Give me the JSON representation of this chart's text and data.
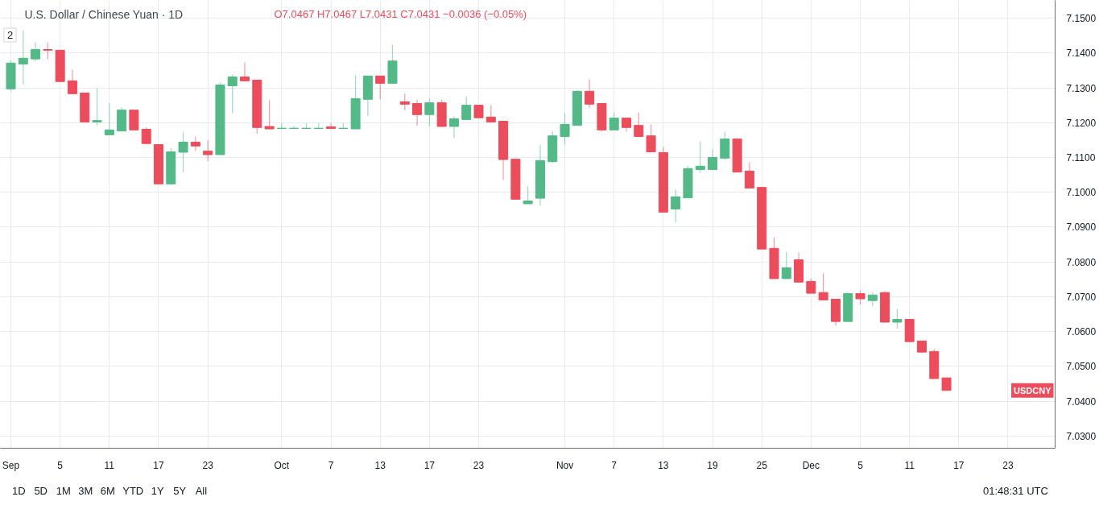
{
  "chart_data": {
    "type": "candlestick",
    "title": "U.S. Dollar / Chinese Yuan · 1D",
    "subtitle": "O7.0467 H7.0467 L7.0431 C7.0431 −0.0036 (−0.05%)",
    "categories": [
      "Sep",
      null,
      null,
      null,
      "5",
      null,
      null,
      null,
      "11",
      null,
      null,
      null,
      "17",
      null,
      null,
      null,
      "23",
      null,
      null,
      null,
      null,
      null,
      "Oct",
      null,
      null,
      null,
      "7",
      null,
      null,
      null,
      "13",
      null,
      null,
      null,
      "17",
      null,
      null,
      null,
      "23",
      null,
      null,
      null,
      null,
      null,
      null,
      "Nov",
      null,
      null,
      null,
      "7",
      null,
      null,
      null,
      "13",
      null,
      null,
      null,
      "19",
      null,
      null,
      null,
      "25",
      null,
      null,
      null,
      "Dec",
      null,
      null,
      null,
      "5",
      null,
      null,
      null,
      "11",
      null,
      null,
      null,
      "17",
      null,
      null,
      null,
      "23"
    ],
    "ohlc": [
      [
        7.1297,
        7.1378,
        7.129,
        7.1371
      ],
      [
        7.1368,
        7.1465,
        7.131,
        7.1385
      ],
      [
        7.1383,
        7.1431,
        7.1375,
        7.141
      ],
      [
        7.141,
        7.143,
        7.1383,
        7.1408
      ],
      [
        7.1408,
        7.1408,
        7.1318,
        7.1318
      ],
      [
        7.132,
        7.1352,
        7.1283,
        7.1283
      ],
      [
        7.1285,
        7.1285,
        7.1202,
        7.1202
      ],
      [
        7.1202,
        7.1299,
        7.1192,
        7.1206
      ],
      [
        7.1165,
        7.1256,
        7.1165,
        7.1179
      ],
      [
        7.1176,
        7.1244,
        7.1176,
        7.1236
      ],
      [
        7.1236,
        7.1236,
        7.1179,
        7.1179
      ],
      [
        7.1181,
        7.1186,
        7.114,
        7.114
      ],
      [
        7.1137,
        7.1137,
        7.1024,
        7.1024
      ],
      [
        7.1024,
        7.1128,
        7.1024,
        7.1116
      ],
      [
        7.1115,
        7.1174,
        7.1057,
        7.1144
      ],
      [
        7.1144,
        7.116,
        7.1119,
        7.1133
      ],
      [
        7.1118,
        7.1149,
        7.1089,
        7.1108
      ],
      [
        7.1108,
        7.1315,
        7.1108,
        7.1308
      ],
      [
        7.1306,
        7.1338,
        7.1227,
        7.1331
      ],
      [
        7.1331,
        7.1373,
        7.132,
        7.132
      ],
      [
        7.1322,
        7.1322,
        7.1168,
        7.1186
      ],
      [
        7.1189,
        7.1264,
        7.1182,
        7.1182
      ],
      [
        7.1183,
        7.1199,
        7.1183,
        7.1184
      ],
      [
        7.1183,
        7.119,
        7.1183,
        7.1184
      ],
      [
        7.1183,
        7.1199,
        7.1183,
        7.1184
      ],
      [
        7.1183,
        7.1199,
        7.1183,
        7.1184
      ],
      [
        7.1188,
        7.1199,
        7.1183,
        7.1183
      ],
      [
        7.1183,
        7.1199,
        7.1183,
        7.1184
      ],
      [
        7.1182,
        7.1336,
        7.1182,
        7.1269
      ],
      [
        7.1267,
        7.1334,
        7.1219,
        7.1334
      ],
      [
        7.1334,
        7.1334,
        7.1267,
        7.1313
      ],
      [
        7.1313,
        7.1424,
        7.1313,
        7.1377
      ],
      [
        7.126,
        7.1283,
        7.1235,
        7.1253
      ],
      [
        7.1255,
        7.1266,
        7.1191,
        7.1223
      ],
      [
        7.1223,
        7.1269,
        7.1189,
        7.1257
      ],
      [
        7.1257,
        7.1266,
        7.1189,
        7.1189
      ],
      [
        7.1189,
        7.1218,
        7.1156,
        7.1211
      ],
      [
        7.1209,
        7.1276,
        7.1209,
        7.125
      ],
      [
        7.125,
        7.125,
        7.1214,
        7.1214
      ],
      [
        7.1216,
        7.125,
        7.1202,
        7.1202
      ],
      [
        7.1204,
        7.1204,
        7.1036,
        7.1094
      ],
      [
        7.1095,
        7.1095,
        7.098,
        7.098
      ],
      [
        7.0967,
        7.1017,
        7.0967,
        7.0975
      ],
      [
        7.0983,
        7.1135,
        7.0962,
        7.1091
      ],
      [
        7.1088,
        7.1176,
        7.1084,
        7.1162
      ],
      [
        7.116,
        7.1227,
        7.1137,
        7.1195
      ],
      [
        7.1192,
        7.1294,
        7.1192,
        7.129
      ],
      [
        7.129,
        7.1324,
        7.1243,
        7.1253
      ],
      [
        7.1255,
        7.1255,
        7.1174,
        7.1179
      ],
      [
        7.1179,
        7.1229,
        7.1179,
        7.1213
      ],
      [
        7.1213,
        7.1213,
        7.1174,
        7.1186
      ],
      [
        7.1192,
        7.1229,
        7.116,
        7.116
      ],
      [
        7.1162,
        7.1195,
        7.1116,
        7.1116
      ],
      [
        7.1114,
        7.113,
        7.0943,
        7.0943
      ],
      [
        7.0952,
        7.1008,
        7.0913,
        7.0987
      ],
      [
        7.0984,
        7.1075,
        7.0984,
        7.1068
      ],
      [
        7.1065,
        7.1146,
        7.1056,
        7.1075
      ],
      [
        7.1065,
        7.1123,
        7.1065,
        7.11
      ],
      [
        7.1098,
        7.1174,
        7.1093,
        7.1153
      ],
      [
        7.1153,
        7.1153,
        7.1058,
        7.1058
      ],
      [
        7.1061,
        7.1086,
        7.1012,
        7.1012
      ],
      [
        7.1014,
        7.1014,
        7.0837,
        7.0837
      ],
      [
        7.0839,
        7.0871,
        7.0752,
        7.0752
      ],
      [
        7.0752,
        7.0829,
        7.0752,
        7.0783
      ],
      [
        7.0806,
        7.0827,
        7.0742,
        7.0742
      ],
      [
        7.0744,
        7.0752,
        7.071,
        7.071
      ],
      [
        7.0712,
        7.0767,
        7.0691,
        7.0691
      ],
      [
        7.0693,
        7.0693,
        7.0617,
        7.0629
      ],
      [
        7.0629,
        7.0714,
        7.0629,
        7.0709
      ],
      [
        7.0709,
        7.0718,
        7.0678,
        7.0694
      ],
      [
        7.0689,
        7.0712,
        7.0673,
        7.0705
      ],
      [
        7.0712,
        7.0716,
        7.0627,
        7.0627
      ],
      [
        7.0627,
        7.0665,
        7.0608,
        7.0635
      ],
      [
        7.0635,
        7.0635,
        7.0571,
        7.0571
      ],
      [
        7.0573,
        7.0573,
        7.0541,
        7.0541
      ],
      [
        7.0543,
        7.055,
        7.0465,
        7.0465
      ],
      [
        7.0467,
        7.0467,
        7.0431,
        7.0431
      ],
      null,
      null,
      null,
      null,
      null
    ],
    "colors": [
      "#53b987",
      "#53b987",
      "#53b987",
      "#eb4d5c",
      "#eb4d5c",
      "#eb4d5c",
      "#eb4d5c",
      "#53b987",
      "#53b987",
      "#53b987",
      "#eb4d5c",
      "#eb4d5c",
      "#eb4d5c",
      "#53b987",
      "#53b987",
      "#eb4d5c",
      "#eb4d5c",
      "#53b987",
      "#53b987",
      "#eb4d5c",
      "#eb4d5c",
      "#eb4d5c",
      "#53b987",
      "#53b987",
      "#53b987",
      "#53b987",
      "#eb4d5c",
      "#53b987",
      "#53b987",
      "#53b987",
      "#eb4d5c",
      "#53b987",
      "#eb4d5c",
      "#eb4d5c",
      "#53b987",
      "#eb4d5c",
      "#53b987",
      "#53b987",
      "#eb4d5c",
      "#eb4d5c",
      "#eb4d5c",
      "#eb4d5c",
      "#53b987",
      "#53b987",
      "#53b987",
      "#53b987",
      "#53b987",
      "#eb4d5c",
      "#eb4d5c",
      "#53b987",
      "#eb4d5c",
      "#eb4d5c",
      "#eb4d5c",
      "#eb4d5c",
      "#53b987",
      "#53b987",
      "#53b987",
      "#53b987",
      "#53b987",
      "#eb4d5c",
      "#eb4d5c",
      "#eb4d5c",
      "#eb4d5c",
      "#53b987",
      "#eb4d5c",
      "#eb4d5c",
      "#eb4d5c",
      "#eb4d5c",
      "#53b987",
      "#eb4d5c",
      "#53b987",
      "#eb4d5c",
      "#53b987",
      "#eb4d5c",
      "#eb4d5c",
      "#eb4d5c",
      "#eb4d5c",
      null,
      null,
      null,
      null,
      null
    ],
    "ylim": [
      7.0265,
      7.1551
    ],
    "yticks": [
      {
        "value": 7.03,
        "label": "7.0300"
      },
      {
        "value": 7.04,
        "label": "7.0400"
      },
      {
        "value": 7.05,
        "label": "7.0500"
      },
      {
        "value": 7.06,
        "label": "7.0600"
      },
      {
        "value": 7.07,
        "label": "7.0700"
      },
      {
        "value": 7.08,
        "label": "7.0800"
      },
      {
        "value": 7.09,
        "label": "7.0900"
      },
      {
        "value": 7.1,
        "label": "7.1000"
      },
      {
        "value": 7.11,
        "label": "7.1100"
      },
      {
        "value": 7.12,
        "label": "7.1200"
      },
      {
        "value": 7.13,
        "label": "7.1300"
      },
      {
        "value": 7.14,
        "label": "7.1400"
      },
      {
        "value": 7.15,
        "label": "7.1500"
      }
    ],
    "grid": true,
    "annotations": [
      "2",
      "USDCNY",
      "1D",
      "5D",
      "1M",
      "3M",
      "6M",
      "YTD",
      "1Y",
      "5Y",
      "All",
      "01:48:31 UTC"
    ]
  }
}
